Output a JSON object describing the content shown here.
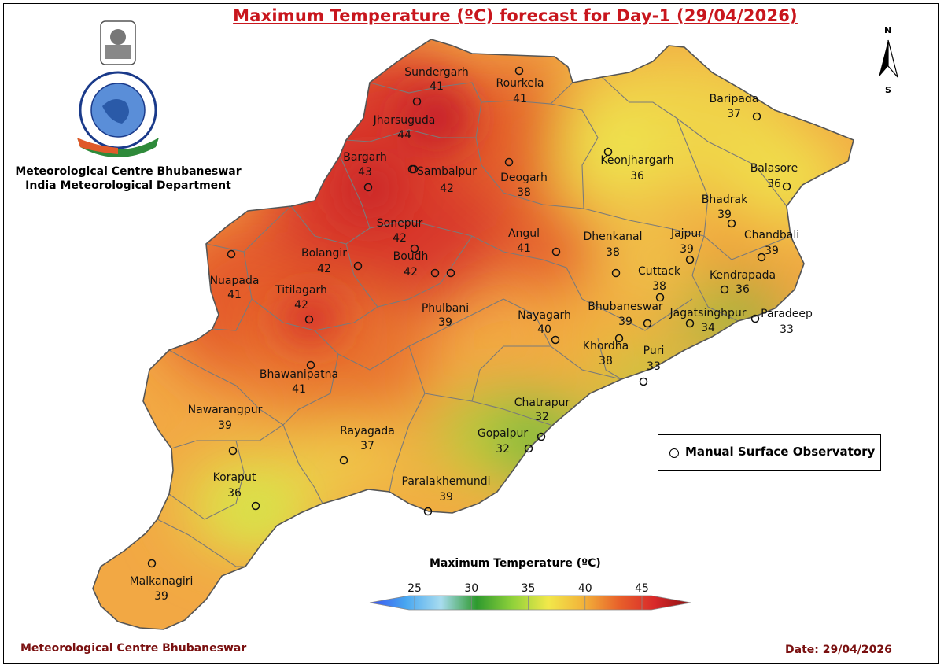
{
  "title": "Maximum Temperature (ºC) forecast for Day-1 (29/04/2026)",
  "org_line1": "Meteorological Centre Bhubaneswar",
  "org_line2": "India Meteorological Department",
  "footer_left": "Meteorological Centre Bhubaneswar",
  "footer_right": "Date: 29/04/2026",
  "legend_station": "Manual Surface Observatory",
  "north_label": "N",
  "south_label": "S",
  "colorbar": {
    "title": "Maximum Temperature (ºC)",
    "ticks": [
      "25",
      "30",
      "35",
      "40",
      "45"
    ],
    "colors": [
      "#3a52f0",
      "#47a6f0",
      "#a8dcef",
      "#2e9a2e",
      "#8fd13a",
      "#f2e84a",
      "#f2b23a",
      "#e8602a",
      "#d8282a",
      "#8a1010"
    ]
  },
  "stations": [
    {
      "name": "Sundergarh",
      "temp": "41"
    },
    {
      "name": "Rourkela",
      "temp": "41"
    },
    {
      "name": "Jharsuguda",
      "temp": "44"
    },
    {
      "name": "Bargarh",
      "temp": "43"
    },
    {
      "name": "Sambalpur",
      "temp": "42"
    },
    {
      "name": "Deogarh",
      "temp": "38"
    },
    {
      "name": "Keonjhargarh",
      "temp": "36"
    },
    {
      "name": "Baripada",
      "temp": "37"
    },
    {
      "name": "Balasore",
      "temp": "36"
    },
    {
      "name": "Bhadrak",
      "temp": "39"
    },
    {
      "name": "Chandbali",
      "temp": "39"
    },
    {
      "name": "Sonepur",
      "temp": "42"
    },
    {
      "name": "Angul",
      "temp": "41"
    },
    {
      "name": "Dhenkanal",
      "temp": "38"
    },
    {
      "name": "Jajpur",
      "temp": "39"
    },
    {
      "name": "Kendrapada",
      "temp": "36"
    },
    {
      "name": "Bolangir",
      "temp": "42"
    },
    {
      "name": "Boudh",
      "temp": "42"
    },
    {
      "name": "Cuttack",
      "temp": "38"
    },
    {
      "name": "Nuapada",
      "temp": "41"
    },
    {
      "name": "Titilagarh",
      "temp": "42"
    },
    {
      "name": "Phulbani",
      "temp": "39"
    },
    {
      "name": "Nayagarh",
      "temp": "40"
    },
    {
      "name": "Bhubaneswar",
      "temp": "39"
    },
    {
      "name": "Jagatsinghpur",
      "temp": "34"
    },
    {
      "name": "Paradeep",
      "temp": "33"
    },
    {
      "name": "Khordha",
      "temp": "38"
    },
    {
      "name": "Puri",
      "temp": "33"
    },
    {
      "name": "Bhawanipatna",
      "temp": "41"
    },
    {
      "name": "Chatrapur",
      "temp": "32"
    },
    {
      "name": "Nawarangpur",
      "temp": "39"
    },
    {
      "name": "Rayagada",
      "temp": "37"
    },
    {
      "name": "Gopalpur",
      "temp": "32"
    },
    {
      "name": "Koraput",
      "temp": "36"
    },
    {
      "name": "Paralakhemundi",
      "temp": "39"
    },
    {
      "name": "Malkanagiri",
      "temp": "39"
    }
  ]
}
